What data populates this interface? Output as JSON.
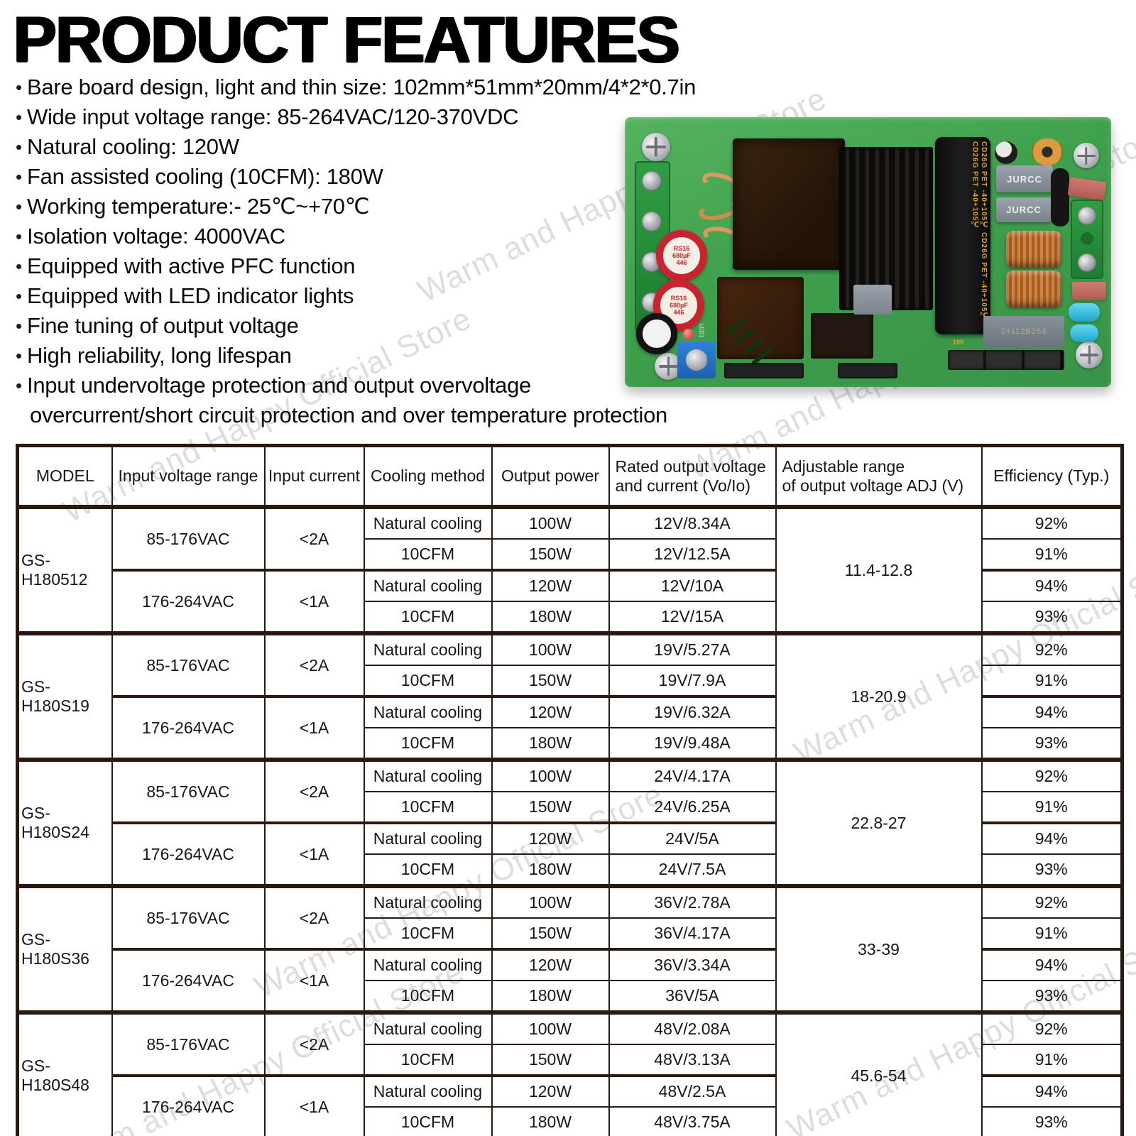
{
  "title": "PRODUCT FEATURES",
  "watermark": {
    "text": "Warm and Happy Official Store"
  },
  "features": [
    "Bare board design, light and thin size: 102mm*51mm*20mm/4*2*0.7in",
    "Wide input voltage range: 85-264VAC/120-370VDC",
    "Natural cooling: 120W",
    "Fan assisted cooling (10CFM): 180W",
    "Working temperature:- 25℃~+70℃",
    "Isolation voltage: 4000VAC",
    "Equipped with active PFC function",
    "Equipped with LED indicator lights",
    "Fine tuning of output voltage",
    "High reliability, long lifespan",
    "Input undervoltage protection and output overvoltage"
  ],
  "features_continuation": "overcurrent/short circuit protection and over temperature protection",
  "pcb": {
    "capacitor_label": "RS16\n680µF\n446",
    "cap_bank_label": "CD26G PET -40+105℃  CD26G PET -40+105℃  CD26G PET -40+105℃",
    "relay_label": "JURCC",
    "inductor_code": "24112B253",
    "led_label": "LED1",
    "gold_marking": "180"
  },
  "table": {
    "headers": [
      "MODEL",
      "Input voltage range",
      "Input current",
      "Cooling method",
      "Output power",
      "Rated output voltage\nand current (Vo/Io)",
      "Adjustable range\nof output voltage ADJ (V)",
      "Efficiency (Typ.)"
    ],
    "models": [
      {
        "model": "GS-H180512",
        "adj_range": "11.4-12.8",
        "groups": [
          {
            "input_voltage": "85-176VAC",
            "input_current": "<2A",
            "rows": [
              {
                "cooling": "Natural cooling",
                "power": "100W",
                "output": "12V/8.34A",
                "efficiency": "92%"
              },
              {
                "cooling": "10CFM",
                "power": "150W",
                "output": "12V/12.5A",
                "efficiency": "91%"
              }
            ]
          },
          {
            "input_voltage": "176-264VAC",
            "input_current": "<1A",
            "rows": [
              {
                "cooling": "Natural cooling",
                "power": "120W",
                "output": "12V/10A",
                "efficiency": "94%"
              },
              {
                "cooling": "10CFM",
                "power": "180W",
                "output": "12V/15A",
                "efficiency": "93%"
              }
            ]
          }
        ]
      },
      {
        "model": "GS-H180S19",
        "adj_range": "18-20.9",
        "groups": [
          {
            "input_voltage": "85-176VAC",
            "input_current": "<2A",
            "rows": [
              {
                "cooling": "Natural cooling",
                "power": "100W",
                "output": "19V/5.27A",
                "efficiency": "92%"
              },
              {
                "cooling": "10CFM",
                "power": "150W",
                "output": "19V/7.9A",
                "efficiency": "91%"
              }
            ]
          },
          {
            "input_voltage": "176-264VAC",
            "input_current": "<1A",
            "rows": [
              {
                "cooling": "Natural cooling",
                "power": "120W",
                "output": "19V/6.32A",
                "efficiency": "94%"
              },
              {
                "cooling": "10CFM",
                "power": "180W",
                "output": "19V/9.48A",
                "efficiency": "93%"
              }
            ]
          }
        ]
      },
      {
        "model": "GS-H180S24",
        "adj_range": "22.8-27",
        "groups": [
          {
            "input_voltage": "85-176VAC",
            "input_current": "<2A",
            "rows": [
              {
                "cooling": "Natural cooling",
                "power": "100W",
                "output": "24V/4.17A",
                "efficiency": "92%"
              },
              {
                "cooling": "10CFM",
                "power": "150W",
                "output": "24V/6.25A",
                "efficiency": "91%"
              }
            ]
          },
          {
            "input_voltage": "176-264VAC",
            "input_current": "<1A",
            "rows": [
              {
                "cooling": "Natural cooling",
                "power": "120W",
                "output": "24V/5A",
                "efficiency": "94%"
              },
              {
                "cooling": "10CFM",
                "power": "180W",
                "output": "24V/7.5A",
                "efficiency": "93%"
              }
            ]
          }
        ]
      },
      {
        "model": "GS-H180S36",
        "adj_range": "33-39",
        "groups": [
          {
            "input_voltage": "85-176VAC",
            "input_current": "<2A",
            "rows": [
              {
                "cooling": "Natural cooling",
                "power": "100W",
                "output": "36V/2.78A",
                "efficiency": "92%"
              },
              {
                "cooling": "10CFM",
                "power": "150W",
                "output": "36V/4.17A",
                "efficiency": "91%"
              }
            ]
          },
          {
            "input_voltage": "176-264VAC",
            "input_current": "<1A",
            "rows": [
              {
                "cooling": "Natural cooling",
                "power": "120W",
                "output": "36V/3.34A",
                "efficiency": "94%"
              },
              {
                "cooling": "10CFM",
                "power": "180W",
                "output": "36V/5A",
                "efficiency": "93%"
              }
            ]
          }
        ]
      },
      {
        "model": "GS-H180S48",
        "adj_range": "45.6-54",
        "groups": [
          {
            "input_voltage": "85-176VAC",
            "input_current": "<2A",
            "rows": [
              {
                "cooling": "Natural cooling",
                "power": "100W",
                "output": "48V/2.08A",
                "efficiency": "92%"
              },
              {
                "cooling": "10CFM",
                "power": "150W",
                "output": "48V/3.13A",
                "efficiency": "91%"
              }
            ]
          },
          {
            "input_voltage": "176-264VAC",
            "input_current": "<1A",
            "rows": [
              {
                "cooling": "Natural cooling",
                "power": "120W",
                "output": "48V/2.5A",
                "efficiency": "94%"
              },
              {
                "cooling": "10CFM",
                "power": "180W",
                "output": "48V/3.75A",
                "efficiency": "93%"
              }
            ]
          }
        ]
      }
    ]
  }
}
